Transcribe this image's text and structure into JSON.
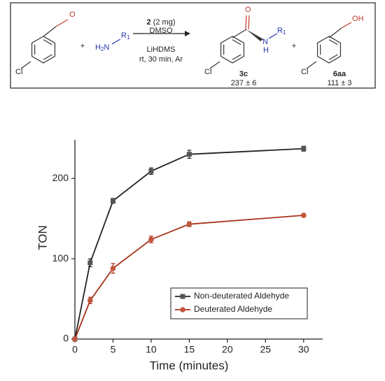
{
  "scheme": {
    "aldehyde": {
      "oxygen": "O",
      "chlorine": "Cl"
    },
    "plus_1": "+",
    "amine": {
      "h": "H",
      "h_count": "2",
      "n": "N",
      "r": "R",
      "r_index": "1"
    },
    "conditions": {
      "catalyst": "2",
      "amount": "(2 mg)",
      "solvent": "DMSO",
      "base": "LiHDMS",
      "other": "rt, 30 min, Ar"
    },
    "product": {
      "oxygen": "O",
      "n": "N",
      "h": "H",
      "r": "R",
      "r_index": "1",
      "chlorine": "Cl",
      "id": "3c",
      "ton": "237 ± 6"
    },
    "plus_2": "+",
    "alcohol": {
      "oh": "OH",
      "chlorine": "Cl",
      "id": "6aa",
      "ton": "111 ± 3"
    }
  },
  "chart_data": {
    "type": "line",
    "x_label": "Time (minutes)",
    "y_label": "TON",
    "x": [
      0,
      2,
      5,
      10,
      15,
      30
    ],
    "series": [
      {
        "name": "Non-deuterated Aldehyde",
        "color": "#222222",
        "marker": "square",
        "marker_color": "#555555",
        "values": [
          0,
          95,
          172,
          209,
          230,
          237
        ],
        "errors": [
          0,
          5,
          3,
          4,
          5,
          3
        ]
      },
      {
        "name": "Deuterated Aldehyde",
        "color": "#a8321c",
        "marker": "circle",
        "marker_color": "#c0553c",
        "values": [
          0,
          48,
          88,
          124,
          143,
          154
        ],
        "errors": [
          0,
          4,
          6,
          4,
          3,
          2
        ]
      }
    ],
    "xlim": [
      0,
      32.5
    ],
    "ylim": [
      0,
      248
    ],
    "xticks": [
      0,
      5,
      10,
      15,
      20,
      25,
      30
    ],
    "yticks": [
      0,
      100,
      200
    ],
    "legend": "lower right",
    "grid": false
  }
}
